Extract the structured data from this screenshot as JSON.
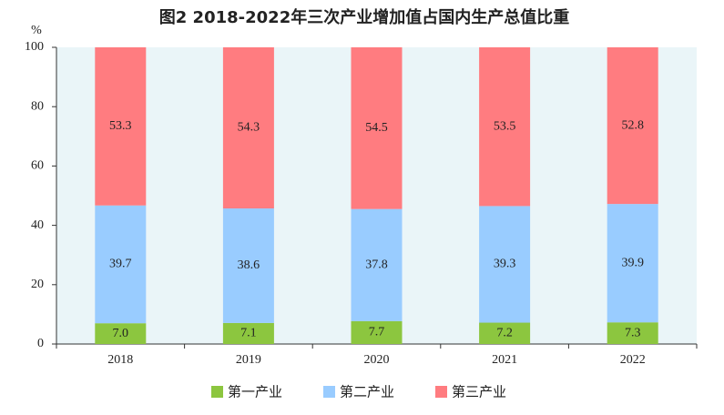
{
  "chart_data": {
    "type": "stacked_bar",
    "title": "图2 2018-2022年三次产业增加值占国内生产总值比重",
    "y_label": "%",
    "categories": [
      "2018",
      "2019",
      "2020",
      "2021",
      "2022"
    ],
    "series": [
      {
        "name": "第一产业",
        "color": "#8cc63f",
        "values": [
          7.0,
          7.1,
          7.7,
          7.2,
          7.3
        ],
        "value_labels": [
          "7.0",
          "7.1",
          "7.7",
          "7.2",
          "7.3"
        ]
      },
      {
        "name": "第二产业",
        "color": "#99ccff",
        "values": [
          39.7,
          38.6,
          37.8,
          39.3,
          39.9
        ],
        "value_labels": [
          "39.7",
          "38.6",
          "37.8",
          "39.3",
          "39.9"
        ]
      },
      {
        "name": "第三产业",
        "color": "#ff7c80",
        "values": [
          53.3,
          54.3,
          54.5,
          53.5,
          52.8
        ],
        "value_labels": [
          "53.3",
          "54.3",
          "54.5",
          "53.5",
          "52.8"
        ]
      }
    ],
    "ylim": [
      0,
      100
    ],
    "yticks": [
      0,
      20,
      40,
      60,
      80,
      100
    ],
    "grid": false
  }
}
